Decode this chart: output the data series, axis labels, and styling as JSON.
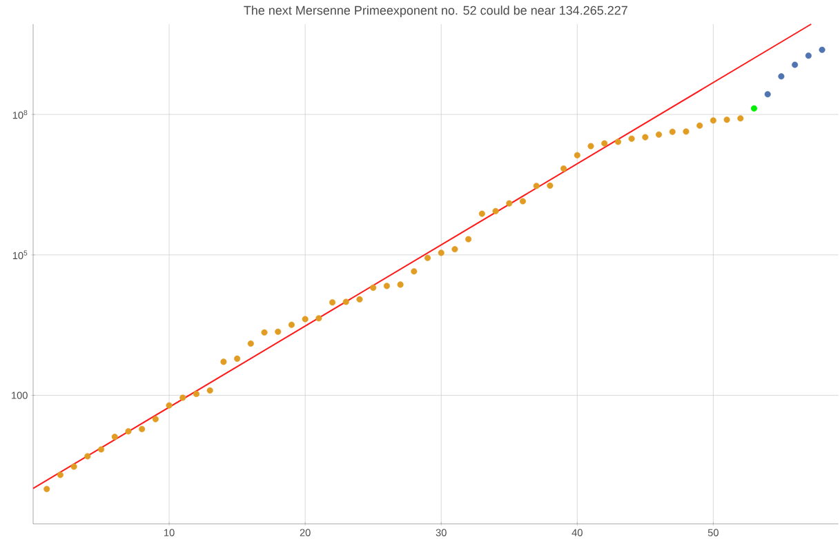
{
  "chart_data": {
    "type": "scatter",
    "title": "The next Mersenne Primeexponent no. 52 could be near 134.265.227",
    "log": "y",
    "grid": true,
    "marker": "circle",
    "xlim": [
      0,
      59.2
    ],
    "ylim": [
      0.18,
      8500000000.0
    ],
    "xticks": [
      10,
      20,
      30,
      40,
      50
    ],
    "yticks": [
      {
        "value": 100,
        "label": "100"
      },
      {
        "value": 100000,
        "label": "10$^{5}$"
      },
      {
        "value": 100000000,
        "label": "10$^{8}$"
      }
    ],
    "series": [
      {
        "color": "#e19c24",
        "x": [
          1,
          2,
          3,
          4,
          5,
          6,
          7,
          8,
          9,
          10,
          11,
          12,
          13,
          14,
          15,
          16,
          17,
          18,
          19,
          20,
          21,
          22,
          23,
          24,
          25,
          26,
          27,
          28,
          29,
          30,
          31,
          32,
          33,
          34,
          35,
          36,
          37,
          38,
          39,
          40,
          41,
          42,
          43,
          44,
          45,
          46,
          47,
          48,
          49,
          50,
          51,
          52
        ],
        "values": [
          1,
          2,
          3,
          5,
          7,
          13,
          17,
          19,
          31,
          61,
          89,
          107,
          127,
          521,
          607,
          1279,
          2203,
          2281,
          3217,
          4253,
          4423,
          9689,
          9941,
          11213,
          19937,
          21701,
          23209,
          44497,
          86243,
          110503,
          132049,
          216091,
          756839,
          859433,
          1257787,
          1398269,
          2976221,
          3021377,
          6972593,
          13466917,
          20996011,
          24036583,
          25964951,
          30402457,
          32582657,
          37156667,
          42643801,
          43112609,
          57885161,
          74207281,
          77232917,
          82589933
        ]
      },
      {
        "color": "#00ee00",
        "x": [
          53
        ],
        "values": [
          134265227
        ]
      },
      {
        "color": "#4f74b0",
        "x": [
          54,
          55,
          56,
          57,
          58
        ],
        "values": [
          270000000,
          650000000,
          1150000000,
          1800000000,
          2400000000
        ]
      },
      {
        "type": "line",
        "color": "#ff1a1a",
        "marker": "none",
        "x": [
          0,
          57.2
        ],
        "values": [
          1.03,
          8500000000.0
        ]
      }
    ]
  }
}
